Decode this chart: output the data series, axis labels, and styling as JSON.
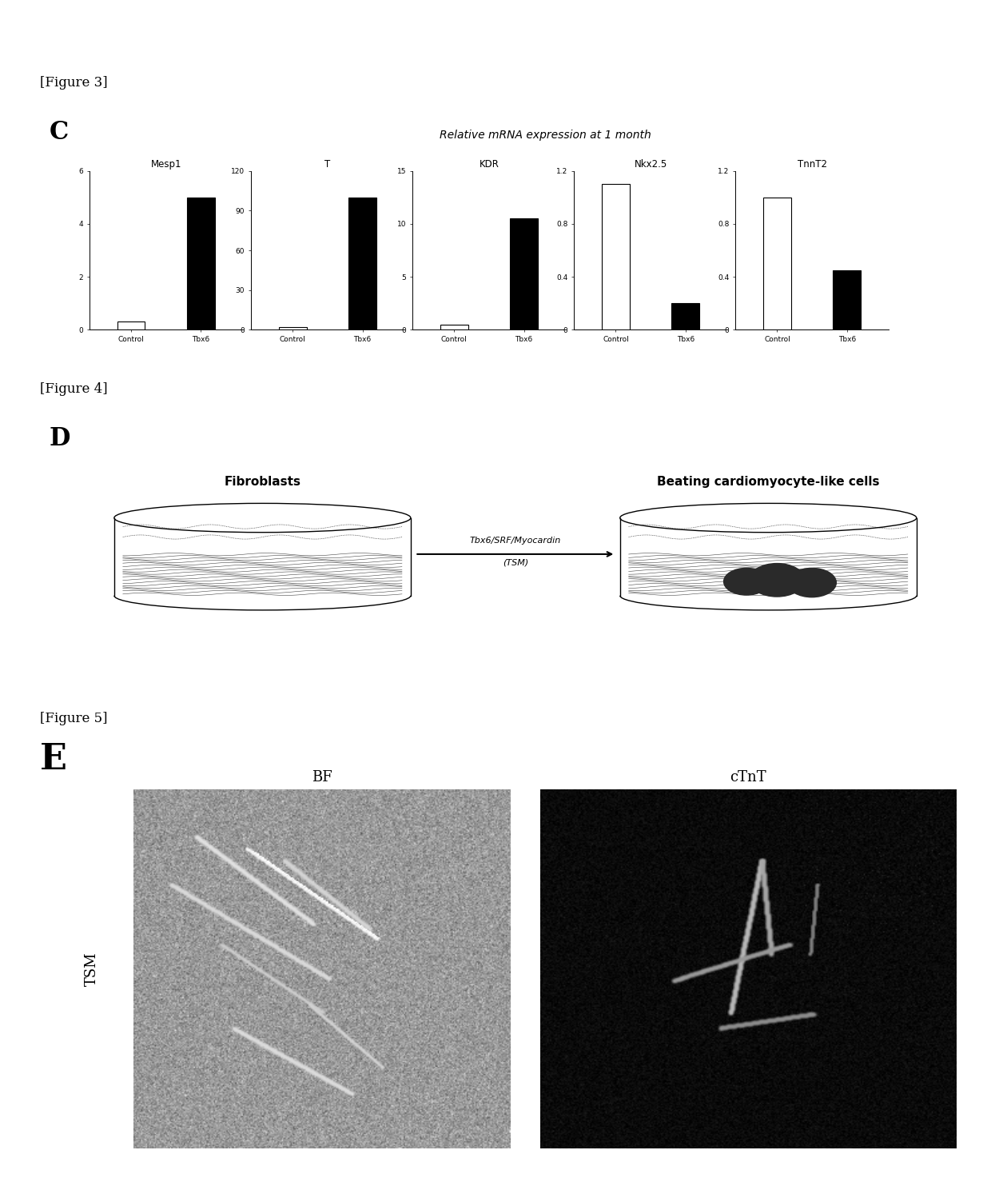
{
  "fig3_title": "Relative mRNA expression at 1 month",
  "fig3_genes": [
    "Mesp1",
    "T",
    "KDR",
    "Nkx2.5",
    "TnnT2"
  ],
  "fig3_ylims": [
    6,
    120,
    15,
    1.2,
    1.2
  ],
  "fig3_yticks": [
    [
      0,
      2,
      4,
      6
    ],
    [
      0,
      30,
      60,
      90,
      120
    ],
    [
      0,
      5,
      10,
      15
    ],
    [
      0,
      0.4,
      0.8,
      1.2
    ],
    [
      0,
      0.4,
      0.8,
      1.2
    ]
  ],
  "fig3_control": [
    0.3,
    2,
    0.5,
    1.1,
    1.0
  ],
  "fig3_tbx6": [
    5.0,
    100,
    10.5,
    0.2,
    0.45
  ],
  "fig3_control_color": "white",
  "fig3_tbx6_color": "black",
  "fig3_bar_edge": "black",
  "fig3_xlabel": [
    "Control",
    "Tbx6"
  ],
  "section_labels": [
    "[Figure 3]",
    "[Figure 4]",
    "[Figure 5]"
  ],
  "panel_labels": [
    "C",
    "D",
    "E"
  ],
  "fig4_left_label": "Fibroblasts",
  "fig4_right_label": "Beating cardiomyocyte-like cells",
  "fig4_arrow_label": "Tbx6/SRF/Myocardin",
  "fig4_arrow_label2": "(TSM)",
  "fig5_bf_label": "BF",
  "fig5_ctnt_label": "cTnT",
  "fig5_row_label": "TSM"
}
